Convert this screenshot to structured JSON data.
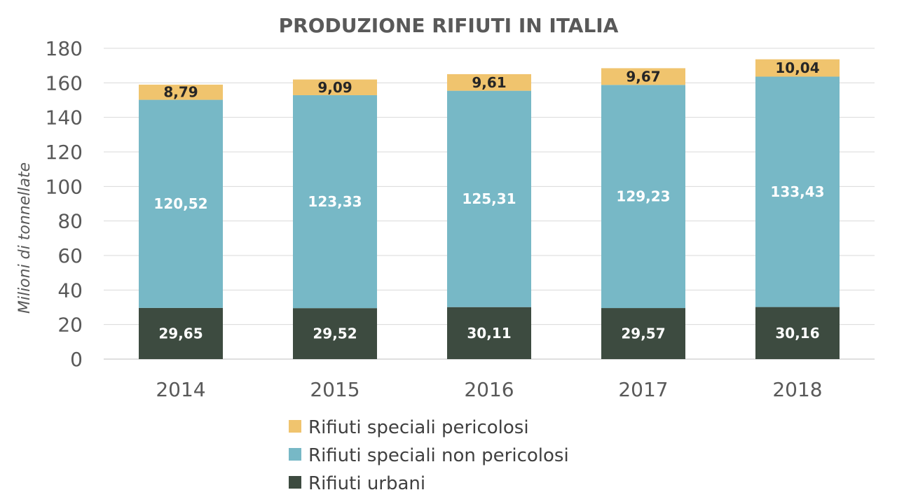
{
  "chart_data": {
    "type": "bar",
    "stacked": true,
    "title": "PRODUZIONE RIFIUTI IN ITALIA",
    "xlabel": "",
    "ylabel": "Milioni di tonnellate",
    "categories": [
      "2014",
      "2015",
      "2016",
      "2017",
      "2018"
    ],
    "ylim": [
      0,
      180
    ],
    "yticks": [
      0,
      20,
      40,
      60,
      80,
      100,
      120,
      140,
      160,
      180
    ],
    "grid": true,
    "legend_position": "bottom",
    "series": [
      {
        "name": "Rifiuti urbani",
        "color": "#3d4b40",
        "label_color": "#ffffff",
        "values": [
          29.65,
          29.52,
          30.11,
          29.57,
          30.16
        ],
        "labels": [
          "29,65",
          "29,52",
          "30,11",
          "29,57",
          "30,16"
        ]
      },
      {
        "name": "Rifiuti speciali non pericolosi",
        "color": "#77b8c6",
        "label_color": "#ffffff",
        "values": [
          120.52,
          123.33,
          125.31,
          129.23,
          133.43
        ],
        "labels": [
          "120,52",
          "123,33",
          "125,31",
          "129,23",
          "133,43"
        ]
      },
      {
        "name": "Rifiuti speciali pericolosi",
        "color": "#f0c46e",
        "label_color": "#262626",
        "values": [
          8.79,
          9.09,
          9.61,
          9.67,
          10.04
        ],
        "labels": [
          "8,79",
          "9,09",
          "9,61",
          "9,67",
          "10,04"
        ]
      }
    ],
    "legend_order": [
      "Rifiuti speciali pericolosi",
      "Rifiuti speciali non pericolosi",
      "Rifiuti urbani"
    ]
  }
}
